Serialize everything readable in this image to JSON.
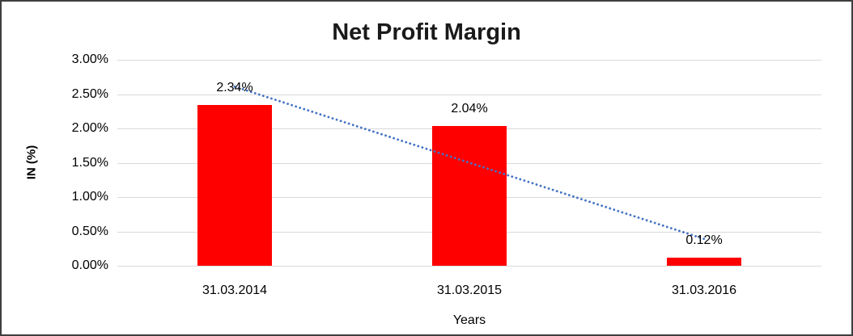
{
  "chart_data": {
    "type": "bar",
    "title": "Net Profit Margin",
    "xlabel": "Years",
    "ylabel": "IN (%)",
    "categories": [
      "31.03.2014",
      "31.03.2015",
      "31.03.2016"
    ],
    "values": [
      2.34,
      2.04,
      0.12
    ],
    "data_labels": [
      "2.34%",
      "2.04%",
      "0.12%"
    ],
    "ylim": [
      0,
      3
    ],
    "ytick_step": 0.5,
    "ytick_labels": [
      "3.00%",
      "2.50%",
      "2.00%",
      "1.50%",
      "1.00%",
      "0.50%",
      "0.00%"
    ],
    "grid": true,
    "legend": "none",
    "bar_color": "#ff0000",
    "gridline_color": "#d9d9d9",
    "trendline": {
      "type": "linear",
      "style": "dotted",
      "color": "#4472c4",
      "endpoints_pct": [
        2.61,
        0.39
      ]
    }
  }
}
